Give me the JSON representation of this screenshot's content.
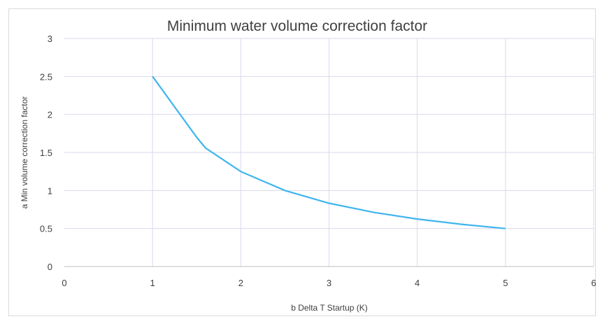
{
  "chart_data": {
    "type": "line",
    "title": "Minimum water volume correction factor",
    "xlabel": "b Delta T Startup (K)",
    "ylabel": "a Min volume correction factor",
    "xlim": [
      0,
      6
    ],
    "ylim": [
      0,
      3
    ],
    "x_ticks": [
      "0",
      "1",
      "2",
      "3",
      "4",
      "5",
      "6"
    ],
    "y_ticks": [
      "0",
      "0.5",
      "1",
      "1.5",
      "2",
      "2.5",
      "3"
    ],
    "grid": true,
    "legend": "none",
    "series_color": "#3fb5ee",
    "series": [
      {
        "x": [
          1,
          1.25,
          1.5,
          1.6,
          2,
          2.5,
          3,
          3.5,
          4,
          4.5,
          5
        ],
        "y": [
          2.5,
          2.1,
          1.7,
          1.56,
          1.25,
          1.0,
          0.833,
          0.714,
          0.625,
          0.556,
          0.5
        ]
      }
    ]
  }
}
